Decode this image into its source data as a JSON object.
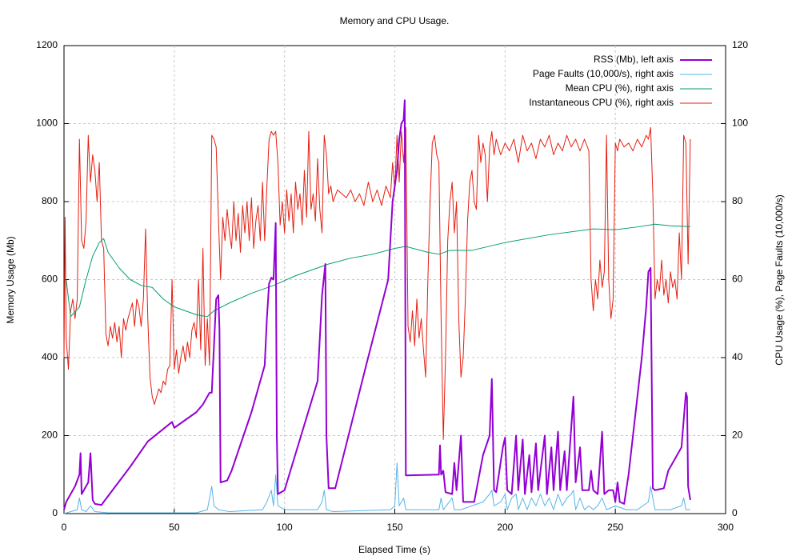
{
  "chart_data": {
    "type": "line",
    "title": "Memory and CPU Usage.",
    "xlabel": "Elapsed Time (s)",
    "ylabel": "Memory Usage (Mb)",
    "y2label": "CPU Usage (%), Page Faults (10,000/s)",
    "xlim": [
      0,
      300
    ],
    "xticks": [
      0,
      50,
      100,
      150,
      200,
      250,
      300
    ],
    "ylim": [
      0,
      1200
    ],
    "yticks": [
      0,
      200,
      400,
      600,
      800,
      1000,
      1200
    ],
    "y2lim": [
      0,
      120
    ],
    "y2ticks": [
      0,
      20,
      40,
      60,
      80,
      100,
      120
    ],
    "grid": true,
    "legend": "upper right",
    "series": [
      {
        "name": "RSS (Mb), left axis",
        "color": "#9400d3",
        "line_width": 2,
        "x": [
          0,
          1,
          5,
          7,
          7.5,
          8,
          11,
          12,
          13,
          14,
          17,
          18,
          30,
          38,
          49,
          50,
          60,
          63,
          66,
          67,
          69,
          70,
          70.5,
          71,
          74,
          76,
          85,
          91,
          92,
          93,
          94,
          95,
          96,
          96.5,
          97,
          100,
          115,
          117,
          118.5,
          119,
          120,
          123,
          137,
          147,
          149,
          151,
          152,
          153,
          154,
          154.5,
          155,
          170,
          170.5,
          171,
          172,
          173,
          176,
          177,
          178,
          180,
          181,
          183,
          186,
          190,
          193,
          194,
          195,
          196,
          199,
          200,
          201,
          203,
          205,
          206,
          208,
          209,
          211,
          212,
          214,
          215,
          218,
          219,
          221,
          222,
          224,
          225,
          227,
          228,
          230,
          231,
          232,
          234,
          235,
          238,
          239,
          240,
          242,
          244,
          245,
          247,
          249,
          250,
          251,
          252,
          254,
          256,
          260,
          262,
          264,
          265,
          266,
          267,
          268,
          272,
          274,
          280,
          281,
          282,
          282.5,
          283,
          284
        ],
        "values": [
          10,
          30,
          70,
          100,
          155,
          50,
          80,
          155,
          35,
          25,
          22,
          30,
          120,
          185,
          235,
          220,
          260,
          280,
          310,
          310,
          550,
          560,
          470,
          80,
          85,
          110,
          260,
          380,
          500,
          590,
          605,
          600,
          745,
          200,
          50,
          60,
          340,
          560,
          640,
          200,
          65,
          65,
          380,
          600,
          800,
          880,
          960,
          1000,
          1010,
          1060,
          98,
          100,
          175,
          100,
          110,
          55,
          50,
          130,
          60,
          200,
          30,
          30,
          30,
          150,
          200,
          345,
          60,
          55,
          170,
          195,
          60,
          50,
          200,
          60,
          190,
          50,
          150,
          55,
          180,
          60,
          200,
          50,
          170,
          60,
          210,
          60,
          160,
          60,
          220,
          300,
          80,
          170,
          60,
          60,
          110,
          60,
          50,
          210,
          50,
          60,
          60,
          30,
          80,
          30,
          25,
          100,
          300,
          400,
          530,
          620,
          630,
          65,
          60,
          65,
          110,
          170,
          240,
          310,
          300,
          70,
          35
        ]
      },
      {
        "name": "Page Faults (10,000/s), right axis",
        "color": "#56b4e9",
        "line_width": 1,
        "axis": "y2",
        "x": [
          0,
          6,
          7,
          8,
          10,
          12,
          14,
          20,
          60,
          65,
          66,
          67,
          68,
          70,
          75,
          90,
          92,
          94,
          95,
          96,
          97,
          100,
          115,
          117,
          118,
          119,
          122,
          148,
          150,
          151,
          152,
          154,
          155,
          170,
          171,
          172,
          176,
          177,
          180,
          185,
          190,
          193,
          194,
          195,
          198,
          200,
          201,
          203,
          205,
          206,
          208,
          210,
          212,
          214,
          216,
          218,
          220,
          222,
          224,
          226,
          228,
          230,
          231,
          232,
          234,
          236,
          238,
          240,
          242,
          244,
          246,
          250,
          255,
          260,
          265,
          266,
          268,
          275,
          280,
          281,
          282,
          284
        ],
        "values": [
          0,
          1,
          4,
          1,
          0.5,
          2,
          0.5,
          0.2,
          0.2,
          1,
          4,
          7,
          2,
          1,
          0.5,
          1,
          3,
          6,
          2,
          10,
          2,
          1,
          1,
          3,
          6,
          1,
          0.5,
          1,
          2,
          13,
          2,
          4,
          1,
          1,
          4,
          1,
          4,
          1,
          1,
          2,
          3,
          5,
          6,
          2,
          3,
          5,
          1,
          4,
          5,
          1,
          4,
          1,
          4,
          2,
          5,
          2,
          4,
          1,
          5,
          2,
          4,
          5,
          6,
          1,
          4,
          1,
          2,
          1,
          2,
          4,
          1,
          2,
          1,
          1,
          3,
          7,
          1,
          1,
          2,
          4,
          1,
          1
        ]
      },
      {
        "name": "Mean CPU (%), right axis",
        "color": "#009e73",
        "line_width": 1,
        "axis": "y2",
        "x": [
          1,
          3,
          7,
          10,
          13,
          16,
          18,
          20,
          25,
          30,
          35,
          40,
          45,
          50,
          55,
          60,
          65,
          68,
          75,
          85,
          95,
          105,
          115,
          120,
          130,
          140,
          150,
          155,
          165,
          170,
          175,
          185,
          200,
          220,
          240,
          250,
          260,
          268,
          275,
          284
        ],
        "values": [
          60,
          50.5,
          53,
          60,
          66,
          69.5,
          70.5,
          67,
          63,
          60,
          58.5,
          58,
          55,
          53,
          52,
          51,
          50.5,
          52,
          54,
          56.5,
          58.5,
          61,
          63,
          64,
          65.5,
          66.5,
          68,
          68.5,
          67,
          66.5,
          67.5,
          67.5,
          69.5,
          71.5,
          73,
          72.8,
          73.5,
          74.2,
          73.8,
          73.6
        ]
      },
      {
        "name": "Instantaneous CPU (%), right axis",
        "color": "#e51e10",
        "line_width": 1,
        "axis": "y2",
        "x": [
          0,
          0.5,
          1,
          2,
          3,
          4,
          5,
          6,
          7,
          8,
          9,
          10,
          11,
          12,
          13,
          14,
          15,
          16,
          17,
          18,
          19,
          20,
          21,
          22,
          23,
          24,
          25,
          26,
          27,
          28,
          29,
          30,
          31,
          32,
          33,
          34,
          35,
          36,
          37,
          38,
          39,
          40,
          41,
          42,
          43,
          44,
          45,
          46,
          47,
          48,
          49,
          50,
          51,
          52,
          53,
          54,
          55,
          56,
          57,
          58,
          59,
          60,
          61,
          62,
          63,
          64,
          65,
          66,
          67,
          68,
          69,
          70,
          71,
          72,
          73,
          74,
          75,
          76,
          77,
          78,
          79,
          80,
          81,
          82,
          83,
          84,
          85,
          86,
          87,
          88,
          89,
          90,
          91,
          92,
          93,
          94,
          95,
          96,
          97,
          98,
          99,
          100,
          101,
          102,
          103,
          104,
          105,
          106,
          107,
          108,
          109,
          110,
          111,
          112,
          113,
          114,
          115,
          116,
          117,
          118,
          119,
          120,
          121,
          122,
          124,
          126,
          128,
          130,
          132,
          134,
          136,
          138,
          140,
          142,
          144,
          146,
          148,
          149,
          150,
          151,
          152,
          153,
          154,
          155,
          156,
          157,
          158,
          159,
          160,
          161,
          162,
          163,
          164,
          165,
          166,
          167,
          168,
          169,
          170,
          171,
          172,
          173,
          174,
          175,
          176,
          177,
          178,
          179,
          180,
          181,
          182,
          183,
          184,
          185,
          186,
          187,
          188,
          189,
          190,
          191,
          192,
          193,
          194,
          195,
          196,
          198,
          200,
          202,
          204,
          206,
          208,
          210,
          212,
          214,
          216,
          218,
          220,
          222,
          224,
          226,
          228,
          230,
          232,
          234,
          236,
          238,
          239,
          240,
          241,
          242,
          243,
          244,
          245,
          246,
          247,
          248,
          249,
          250,
          251,
          252,
          254,
          256,
          258,
          260,
          262,
          264,
          265,
          266,
          267,
          268,
          269,
          270,
          271,
          272,
          273,
          274,
          275,
          276,
          277,
          278,
          279,
          280,
          281,
          282,
          283,
          284
        ],
        "values": [
          40,
          76,
          45,
          37,
          52,
          55,
          50,
          55,
          96,
          70,
          68,
          75,
          97,
          85,
          92,
          88,
          80,
          90,
          70,
          68,
          46,
          43,
          48,
          45,
          49,
          44,
          48,
          40,
          50,
          47,
          50,
          52,
          54,
          48,
          55,
          53,
          48,
          55,
          73,
          50,
          35,
          30,
          28,
          30,
          32,
          31,
          34,
          33,
          37,
          38,
          60,
          37,
          42,
          36,
          40,
          43,
          39,
          44,
          40,
          47,
          49,
          45,
          60,
          42,
          68,
          38,
          50,
          38,
          97,
          96,
          94,
          76,
          60,
          76,
          70,
          78,
          72,
          68,
          80,
          70,
          77,
          67,
          79,
          72,
          80,
          70,
          81,
          68,
          75,
          79,
          70,
          85,
          70,
          84,
          96,
          98,
          97,
          98,
          90,
          74,
          80,
          72,
          83,
          75,
          82,
          72,
          85,
          78,
          82,
          74,
          88,
          76,
          98,
          78,
          82,
          75,
          91,
          78,
          72,
          97,
          92,
          82,
          84,
          80,
          83,
          82,
          81,
          83,
          80,
          82,
          79,
          85,
          80,
          83,
          79,
          84,
          81,
          90,
          83,
          97,
          85,
          98,
          90,
          99,
          48,
          44,
          52,
          43,
          55,
          45,
          50,
          42,
          35,
          60,
          80,
          95,
          97,
          92,
          90,
          50,
          19,
          40,
          70,
          80,
          85,
          72,
          80,
          50,
          35,
          40,
          55,
          75,
          85,
          88,
          80,
          78,
          97,
          90,
          95,
          92,
          80,
          94,
          98,
          92,
          96,
          92,
          95,
          93,
          96,
          90,
          97,
          93,
          95,
          91,
          96,
          94,
          97,
          92,
          95,
          93,
          97,
          94,
          96,
          93,
          96,
          93,
          60,
          52,
          60,
          55,
          65,
          58,
          62,
          97,
          60,
          50,
          55,
          95,
          93,
          96,
          94,
          95,
          93,
          96,
          94,
          97,
          96,
          99,
          82,
          55,
          60,
          57,
          65,
          56,
          60,
          54,
          62,
          58,
          60,
          55,
          72,
          60,
          97,
          95,
          64,
          96
        ]
      }
    ]
  }
}
